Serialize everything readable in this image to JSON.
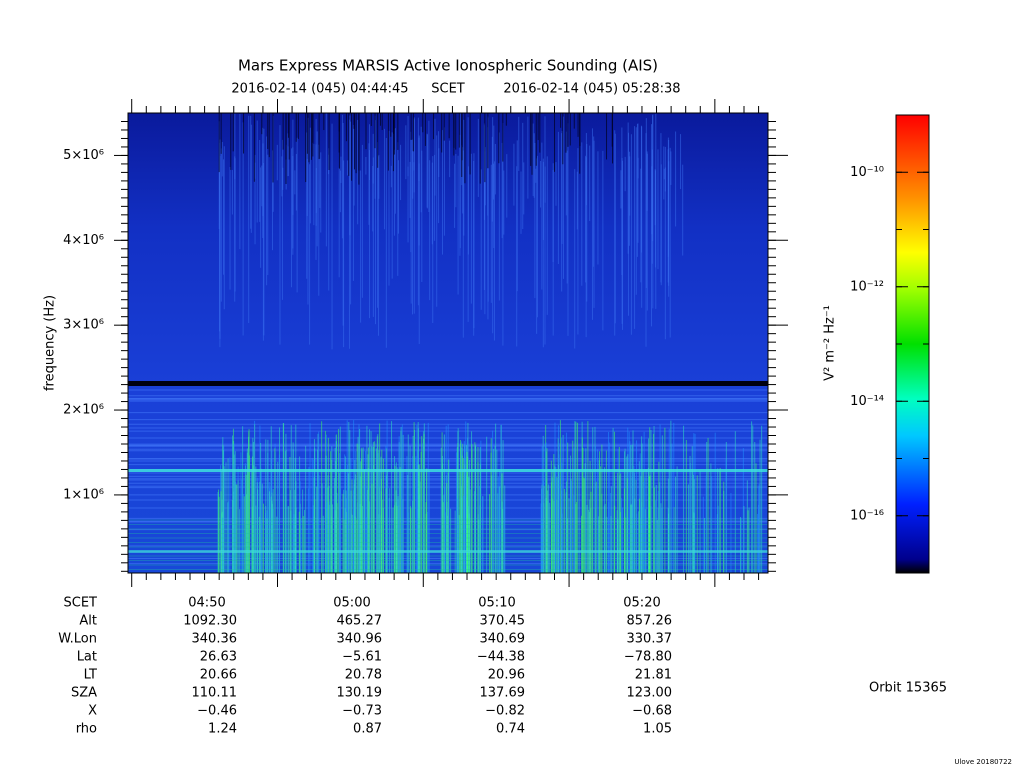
{
  "title": "Mars Express MARSIS Active Ionospheric Sounding (AIS)",
  "time_range": {
    "start": "2016-02-14 (045) 04:44:45",
    "frame": "SCET",
    "end": "2016-02-14 (045) 05:28:38"
  },
  "chart_data": {
    "type": "spectrogram",
    "ylabel": "frequency (Hz)",
    "ylim": [
      80000,
      5500000
    ],
    "yticks": [
      {
        "value": 1000000,
        "label": "1×10⁶"
      },
      {
        "value": 2000000,
        "label": "2×10⁶"
      },
      {
        "value": 3000000,
        "label": "3×10⁶"
      },
      {
        "value": 4000000,
        "label": "4×10⁶"
      },
      {
        "value": 5000000,
        "label": "5×10⁶"
      }
    ],
    "colorbar": {
      "label": "V² m⁻² Hz⁻¹",
      "log": true,
      "lim": [
        1e-17,
        1e-09
      ],
      "ticks": [
        {
          "value": 1e-10,
          "label": "10⁻¹⁰"
        },
        {
          "value": 1e-12,
          "label": "10⁻¹²"
        },
        {
          "value": 1e-14,
          "label": "10⁻¹⁴"
        },
        {
          "value": 1e-16,
          "label": "10⁻¹⁶"
        }
      ]
    }
  },
  "ephemeris": [
    {
      "label": "SCET",
      "values": [
        "04:50",
        "05:00",
        "05:10",
        "05:20"
      ]
    },
    {
      "label": "Alt",
      "values": [
        "1092.30",
        "465.27",
        "370.45",
        "857.26"
      ]
    },
    {
      "label": "W.Lon",
      "values": [
        "340.36",
        "340.96",
        "340.69",
        "330.37"
      ]
    },
    {
      "label": "Lat",
      "values": [
        "26.63",
        "−5.61",
        "−44.38",
        "−78.80"
      ]
    },
    {
      "label": "LT",
      "values": [
        "20.66",
        "20.78",
        "20.96",
        "21.81"
      ]
    },
    {
      "label": "SZA",
      "values": [
        "110.11",
        "130.19",
        "137.69",
        "123.00"
      ]
    },
    {
      "label": "X",
      "values": [
        "−0.46",
        "−0.73",
        "−0.82",
        "−0.68"
      ]
    },
    {
      "label": "rho",
      "values": [
        "1.24",
        "0.87",
        "0.74",
        "1.05"
      ]
    }
  ],
  "orbit": "Orbit 15365",
  "footer": "Ulove 20180722"
}
